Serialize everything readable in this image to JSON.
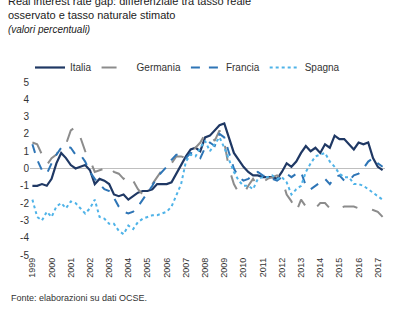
{
  "chart_data": {
    "type": "line",
    "title": "Real interest rate gap: differenziale tra tasso reale osservato e tasso naturale stimato",
    "subtitle": "(valori percentuali)",
    "source": "Fonte: elaborazioni su dati OCSE.",
    "categories": [
      "1999",
      null,
      null,
      null,
      "2000",
      null,
      null,
      null,
      "2001",
      null,
      null,
      null,
      "2002",
      null,
      null,
      null,
      "2003",
      null,
      null,
      null,
      "2004",
      null,
      null,
      null,
      "2005",
      null,
      null,
      null,
      "2006",
      null,
      null,
      null,
      "2007",
      null,
      null,
      null,
      "2008",
      null,
      null,
      null,
      "2009",
      null,
      null,
      null,
      "2010",
      null,
      null,
      null,
      "2011",
      null,
      null,
      null,
      "2012",
      null,
      null,
      null,
      "2013",
      null,
      null,
      null,
      "2014",
      null,
      null,
      null,
      "2015",
      null,
      null,
      null,
      "2016",
      null,
      null,
      null,
      "2017",
      null
    ],
    "series": [
      {
        "name": "Italia",
        "color": "#1f3864",
        "line_style": "solid",
        "values": [
          -1.0,
          -1.0,
          -0.9,
          -1.0,
          -0.6,
          0.3,
          0.9,
          0.6,
          0.2,
          0.0,
          0.1,
          0.2,
          -0.1,
          -0.9,
          -0.6,
          -0.7,
          -0.9,
          -1.5,
          -1.6,
          -1.5,
          -1.8,
          -1.6,
          -1.4,
          -1.3,
          -1.3,
          -1.2,
          -0.9,
          -0.9,
          -0.9,
          -0.8,
          -0.3,
          0.2,
          0.7,
          1.1,
          1.2,
          1.0,
          1.8,
          1.9,
          2.2,
          2.5,
          2.6,
          1.8,
          0.9,
          0.5,
          0.1,
          -0.2,
          -0.4,
          -0.4,
          -0.5,
          -0.5,
          -0.5,
          -0.6,
          -0.2,
          0.3,
          0.1,
          0.4,
          0.9,
          1.3,
          1.0,
          1.2,
          0.9,
          1.4,
          1.2,
          1.9,
          1.7,
          1.7,
          1.4,
          1.1,
          1.5,
          1.4,
          1.5,
          0.6,
          0.1,
          -0.1
        ]
      },
      {
        "name": "Germania",
        "color": "#8c8c8c",
        "line_style": "longdash",
        "values": [
          1.5,
          1.4,
          0.8,
          0.2,
          0.6,
          0.8,
          1.3,
          1.4,
          2.2,
          2.4,
          1.8,
          1.0,
          0.5,
          -0.2,
          -0.1,
          0.0,
          0.2,
          -0.2,
          -0.3,
          -0.6,
          -0.3,
          -0.7,
          -1.2,
          -1.5,
          -1.2,
          -0.9,
          -0.5,
          -0.1,
          0.0,
          0.3,
          0.7,
          0.7,
          0.6,
          1.0,
          1.2,
          1.5,
          2.0,
          2.0,
          1.6,
          2.2,
          1.5,
          0.0,
          -0.9,
          -1.4,
          -1.5,
          -1.0,
          -0.6,
          -1.0,
          -0.8,
          -0.6,
          -0.5,
          -0.4,
          -0.6,
          -1.5,
          -1.9,
          -2.5,
          -1.8,
          -2.2,
          -2.4,
          -2.3,
          -2.0,
          -2.0,
          -2.3,
          -2.4,
          -2.3,
          -2.2,
          -2.2,
          -2.2,
          -2.3,
          -2.3,
          -2.3,
          -2.4,
          -2.5,
          -2.8
        ]
      },
      {
        "name": "Francia",
        "color": "#2e75b6",
        "line_style": "dash",
        "values": [
          1.4,
          0.5,
          -0.1,
          -0.3,
          0.3,
          0.8,
          1.2,
          1.3,
          1.2,
          0.8,
          0.8,
          0.4,
          -0.2,
          -0.6,
          -0.9,
          -1.2,
          -1.3,
          -1.7,
          -2.2,
          -2.5,
          -2.6,
          -2.5,
          -2.2,
          -1.8,
          -1.4,
          -1.0,
          -0.5,
          -0.2,
          0.1,
          0.5,
          0.8,
          0.8,
          0.6,
          0.9,
          0.8,
          0.6,
          1.2,
          1.5,
          1.3,
          2.0,
          1.8,
          0.9,
          0.0,
          -0.5,
          -0.7,
          -0.6,
          -0.4,
          -0.2,
          -0.4,
          -0.5,
          -0.6,
          -0.7,
          -0.5,
          -0.3,
          -0.5,
          -0.3,
          -0.2,
          -1.0,
          -1.2,
          -1.0,
          -0.8,
          -0.6,
          -0.9,
          -0.5,
          -0.4,
          -0.7,
          -0.7,
          -0.4,
          -0.3,
          0.0,
          0.4,
          0.6,
          0.3,
          0.1
        ]
      },
      {
        "name": "Spagna",
        "color": "#4fb3e8",
        "line_style": "dot",
        "values": [
          -1.8,
          -2.8,
          -3.0,
          -2.5,
          -2.8,
          -2.2,
          -2.0,
          -2.3,
          -1.9,
          -2.0,
          -2.3,
          -2.6,
          -2.3,
          -1.8,
          -2.8,
          -2.9,
          -3.2,
          -3.2,
          -3.6,
          -3.8,
          -3.3,
          -3.5,
          -3.1,
          -2.9,
          -2.8,
          -2.7,
          -2.7,
          -2.6,
          -2.5,
          -2.2,
          -1.6,
          -0.9,
          0.4,
          0.8,
          0.7,
          1.2,
          1.6,
          1.0,
          1.4,
          1.8,
          1.2,
          0.5,
          -0.2,
          -0.7,
          -1.0,
          -1.0,
          -1.2,
          -0.6,
          -0.5,
          -0.5,
          -0.4,
          -0.6,
          -0.5,
          -0.8,
          -1.5,
          -1.2,
          -1.0,
          -0.2,
          0.3,
          0.7,
          0.8,
          0.9,
          0.4,
          0.1,
          -0.3,
          -0.5,
          -0.5,
          -0.9,
          -0.9,
          -1.0,
          -1.2,
          -1.4,
          -1.6,
          -1.8
        ]
      }
    ],
    "ylim": [
      -5,
      5
    ],
    "yticks": [
      -5,
      -4,
      -3,
      -2,
      -1,
      0,
      1,
      2,
      3,
      4,
      5
    ],
    "grid": false,
    "legend": "top"
  }
}
